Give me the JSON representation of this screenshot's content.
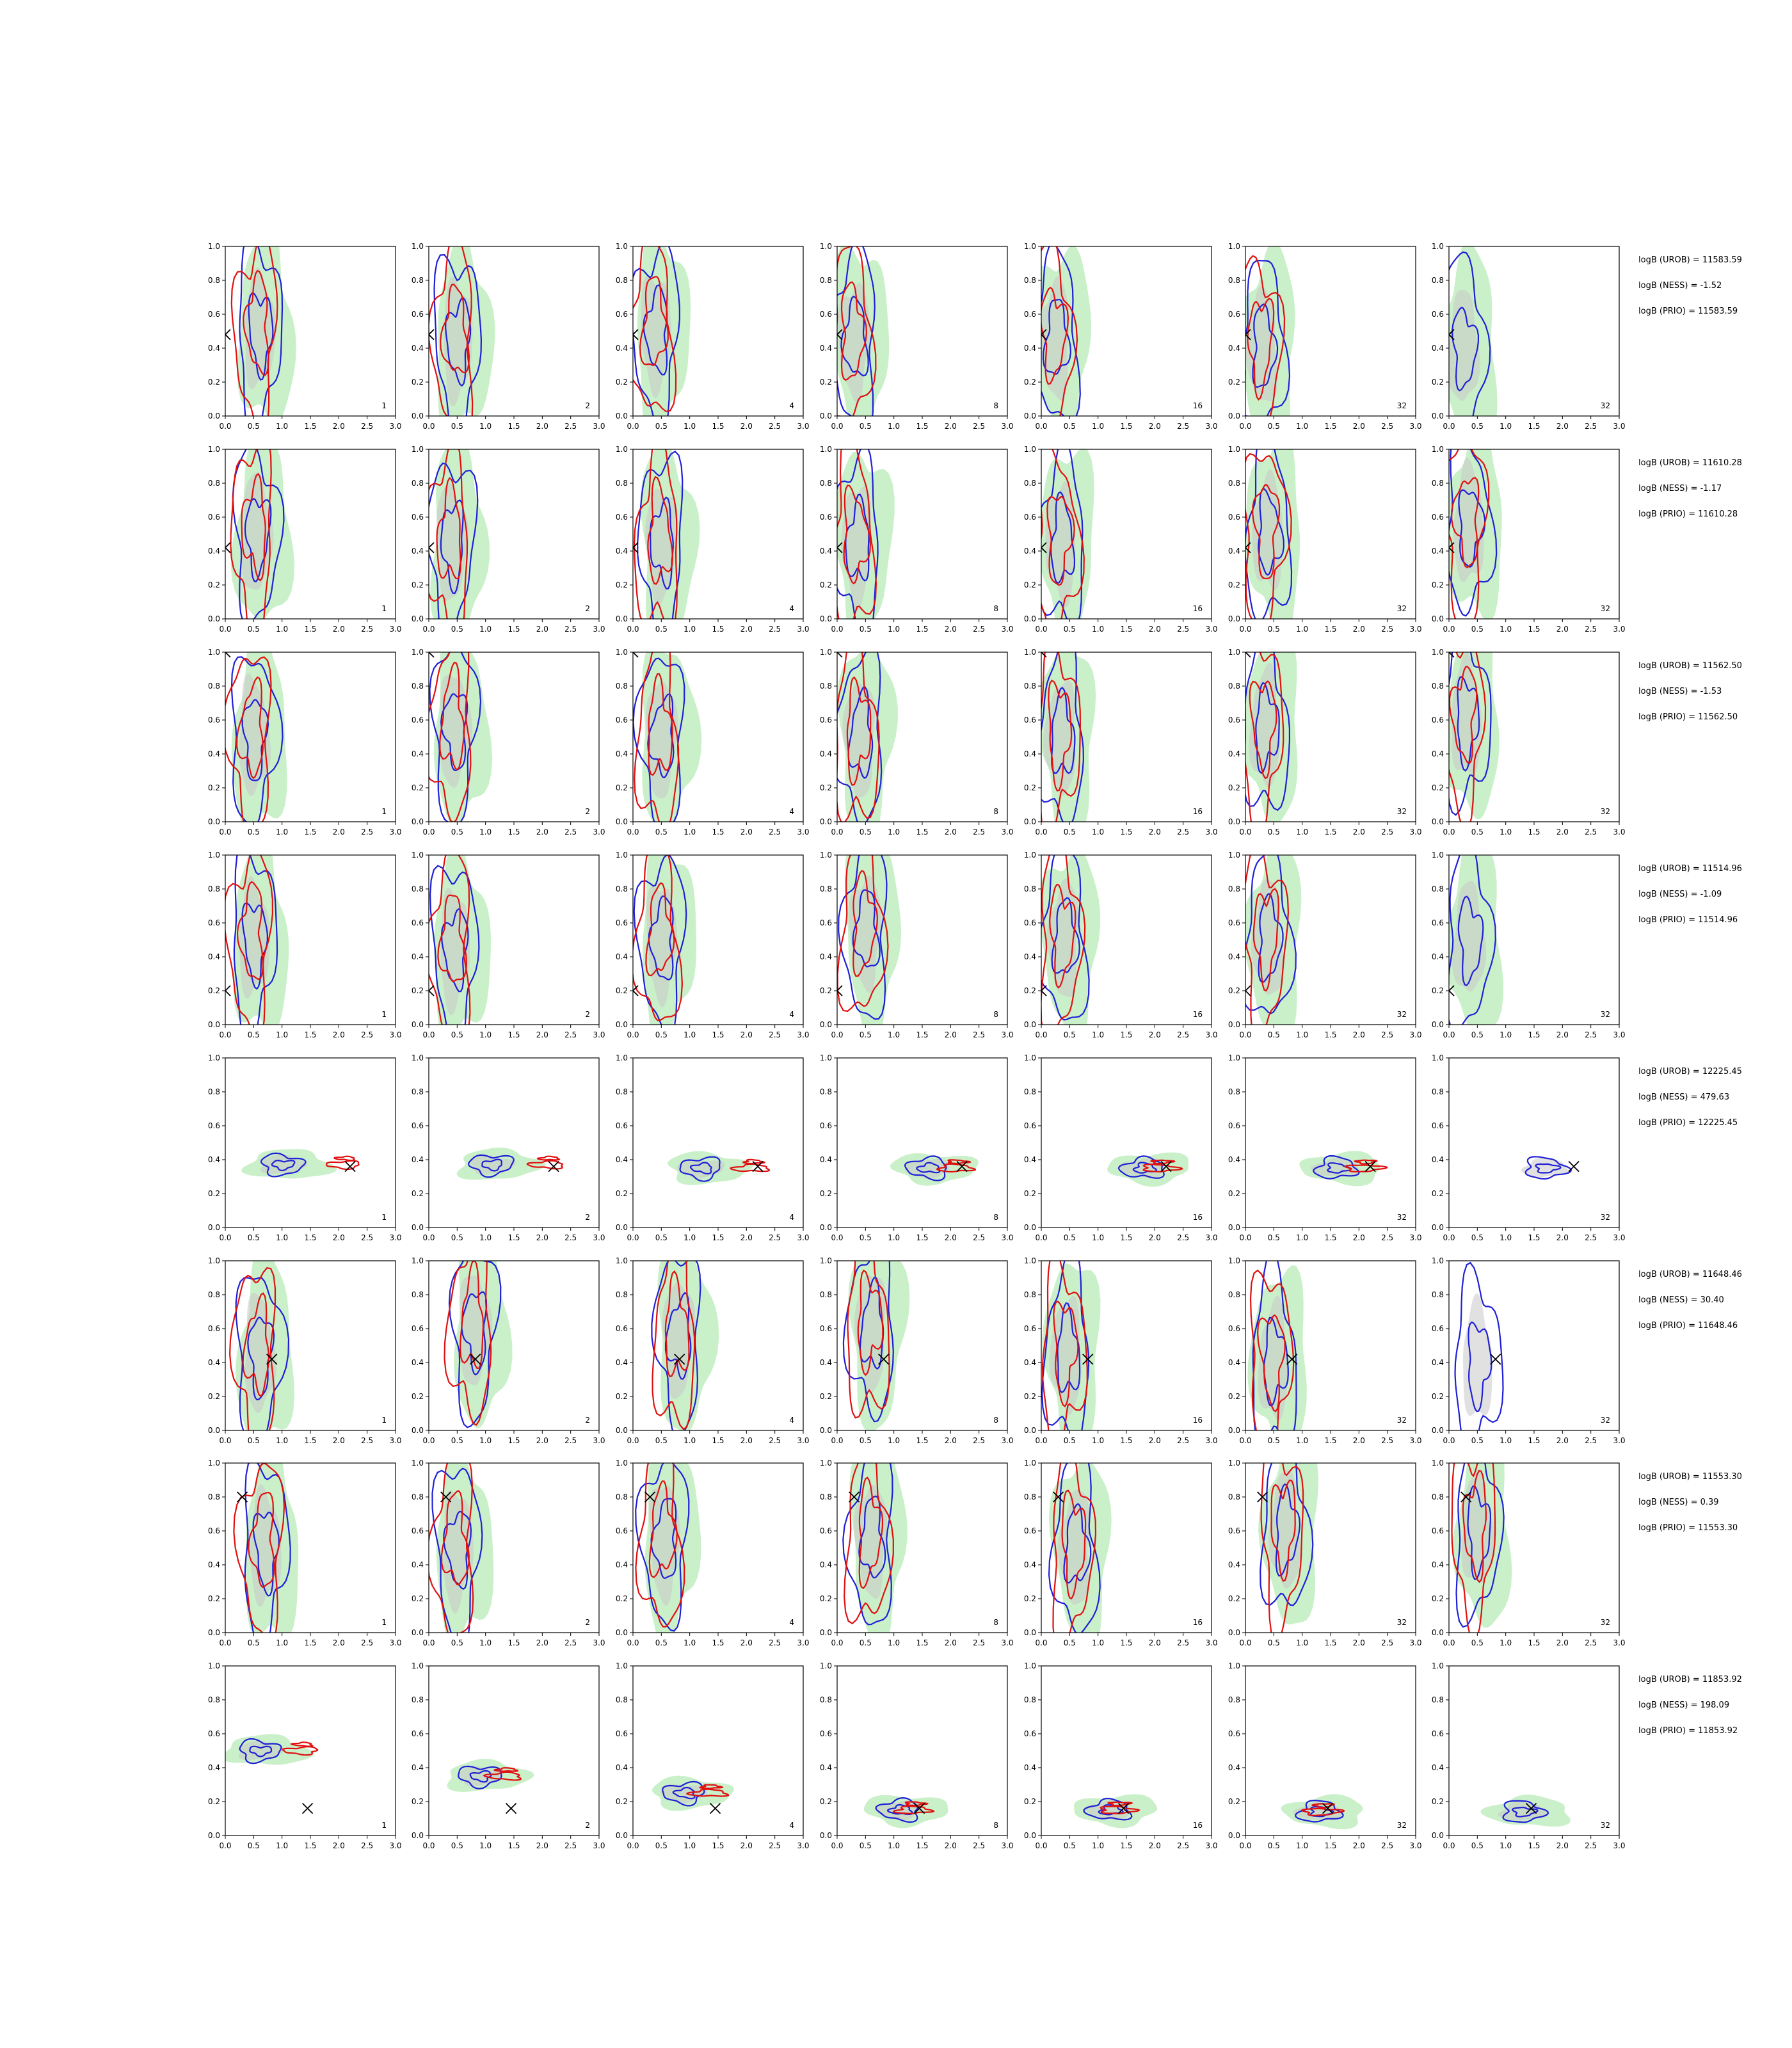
{
  "chart_data": {
    "type": "contour",
    "rows": 8,
    "columns": 7,
    "xlim": [
      0.0,
      3.0
    ],
    "ylim": [
      0.0,
      1.0
    ],
    "xticks": [
      "0.0",
      "0.5",
      "1.0",
      "1.5",
      "2.0",
      "2.5",
      "3.0"
    ],
    "yticks": [
      "0.0",
      "0.2",
      "0.4",
      "0.6",
      "0.8",
      "1.0"
    ],
    "panel_labels": [
      "1",
      "2",
      "4",
      "8",
      "16",
      "32",
      "32"
    ],
    "colors": {
      "blue": "#1f1fd6",
      "red": "#e01010",
      "green": "#9fe39f",
      "grey": "#c8c8c8",
      "marker": "#000000"
    },
    "rows_data": [
      {
        "true_x": 0.0,
        "true_y": 0.48,
        "scores": [
          "logB (UROB) = 11583.59",
          "logB (NESS) = -1.52",
          "logB (PRIO) = 11583.59"
        ],
        "centers": [
          [
            0.6,
            0.5
          ],
          [
            0.5,
            0.45
          ],
          [
            0.4,
            0.5
          ],
          [
            0.3,
            0.45
          ],
          [
            0.25,
            0.45
          ],
          [
            0.3,
            0.4
          ],
          [
            0.25,
            0.4
          ]
        ]
      },
      {
        "true_x": 0.0,
        "true_y": 0.42,
        "scores": [
          "logB (UROB) = 11610.28",
          "logB (NESS) = -1.17",
          "logB (PRIO) = 11610.28"
        ],
        "centers": [
          [
            0.55,
            0.5
          ],
          [
            0.4,
            0.45
          ],
          [
            0.5,
            0.45
          ],
          [
            0.35,
            0.45
          ],
          [
            0.35,
            0.45
          ],
          [
            0.4,
            0.5
          ],
          [
            0.35,
            0.55
          ]
        ]
      },
      {
        "true_x": 0.0,
        "true_y": 1.0,
        "scores": [
          "logB (UROB) = 11562.50",
          "logB (NESS) = -1.53",
          "logB (PRIO) = 11562.50"
        ],
        "centers": [
          [
            0.5,
            0.5
          ],
          [
            0.45,
            0.55
          ],
          [
            0.5,
            0.5
          ],
          [
            0.4,
            0.5
          ],
          [
            0.35,
            0.5
          ],
          [
            0.35,
            0.55
          ],
          [
            0.3,
            0.6
          ]
        ]
      },
      {
        "true_x": 0.0,
        "true_y": 0.2,
        "scores": [
          "logB (UROB) = 11514.96",
          "logB (NESS) = -1.09",
          "logB (PRIO) = 11514.96"
        ],
        "centers": [
          [
            0.5,
            0.5
          ],
          [
            0.45,
            0.45
          ],
          [
            0.5,
            0.5
          ],
          [
            0.5,
            0.55
          ],
          [
            0.4,
            0.5
          ],
          [
            0.4,
            0.5
          ],
          [
            0.35,
            0.5
          ]
        ]
      },
      {
        "true_x": 2.2,
        "true_y": 0.36,
        "scores": [
          "logB (UROB) = 12225.45",
          "logB (NESS) = 479.63",
          "logB (PRIO) = 12225.45"
        ],
        "centers": [
          [
            1.0,
            0.37
          ],
          [
            1.1,
            0.37
          ],
          [
            1.2,
            0.35
          ],
          [
            1.6,
            0.35
          ],
          [
            1.8,
            0.35
          ],
          [
            1.6,
            0.35
          ],
          [
            1.7,
            0.35
          ]
        ]
      },
      {
        "true_x": 0.82,
        "true_y": 0.42,
        "scores": [
          "logB (UROB) = 11648.46",
          "logB (NESS) = 30.40",
          "logB (PRIO) = 11648.46"
        ],
        "centers": [
          [
            0.6,
            0.45
          ],
          [
            0.8,
            0.6
          ],
          [
            0.8,
            0.55
          ],
          [
            0.6,
            0.6
          ],
          [
            0.45,
            0.45
          ],
          [
            0.5,
            0.4
          ],
          [
            0.5,
            0.4
          ]
        ]
      },
      {
        "true_x": 0.3,
        "true_y": 0.8,
        "scores": [
          "logB (UROB) = 11553.30",
          "logB (NESS) = 0.39",
          "logB (PRIO) = 11553.30"
        ],
        "centers": [
          [
            0.7,
            0.5
          ],
          [
            0.5,
            0.5
          ],
          [
            0.55,
            0.55
          ],
          [
            0.6,
            0.55
          ],
          [
            0.6,
            0.5
          ],
          [
            0.7,
            0.6
          ],
          [
            0.5,
            0.6
          ]
        ]
      },
      {
        "true_x": 1.45,
        "true_y": 0.16,
        "scores": [
          "logB (UROB) = 11853.92",
          "logB (NESS) = 198.09",
          "logB (PRIO) = 11853.92"
        ],
        "centers": [
          [
            0.6,
            0.5
          ],
          [
            0.9,
            0.35
          ],
          [
            0.9,
            0.25
          ],
          [
            1.1,
            0.15
          ],
          [
            1.2,
            0.15
          ],
          [
            1.3,
            0.14
          ],
          [
            1.3,
            0.14
          ]
        ]
      }
    ]
  }
}
